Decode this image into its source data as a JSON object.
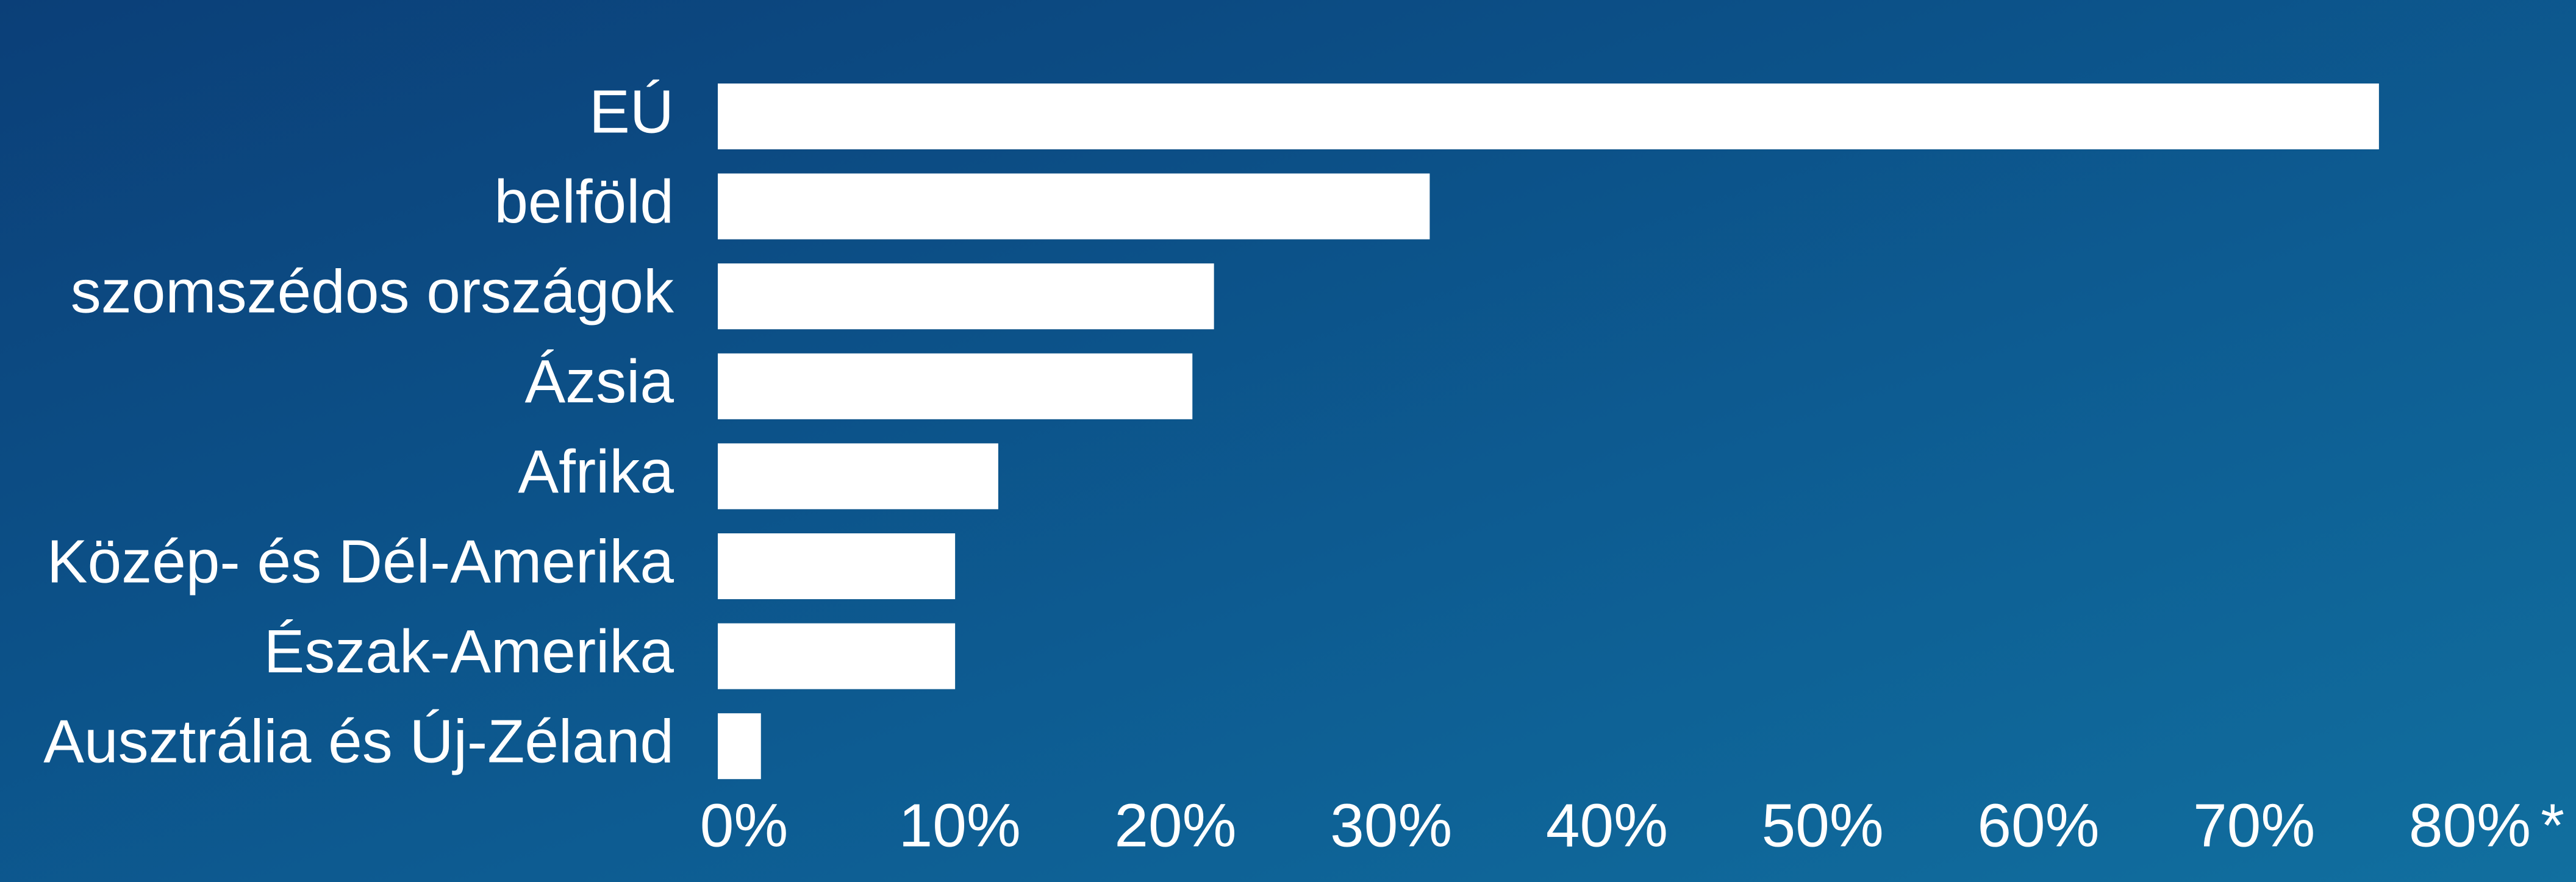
{
  "chart_data": {
    "type": "bar",
    "orientation": "horizontal",
    "categories": [
      "EÚ",
      "belföld",
      "szomszédos országok",
      "Ázsia",
      "Afrika",
      "Közép- és Dél-Amerika",
      "Észak-Amerika",
      "Ausztrália és Új-Zéland"
    ],
    "values": [
      77,
      33,
      23,
      22,
      13,
      11,
      11,
      2
    ],
    "color": "#ffffff",
    "xlim": [
      0,
      80
    ],
    "xticks": [
      {
        "value": 0,
        "label": "0%"
      },
      {
        "value": 10,
        "label": "10%"
      },
      {
        "value": 20,
        "label": "20%"
      },
      {
        "value": 30,
        "label": "30%"
      },
      {
        "value": 40,
        "label": "40%"
      },
      {
        "value": 50,
        "label": "50%"
      },
      {
        "value": 60,
        "label": "60%"
      },
      {
        "value": 70,
        "label": "70%"
      },
      {
        "value": 80,
        "label": "80%"
      }
    ],
    "annotation": "*",
    "grid": false
  }
}
